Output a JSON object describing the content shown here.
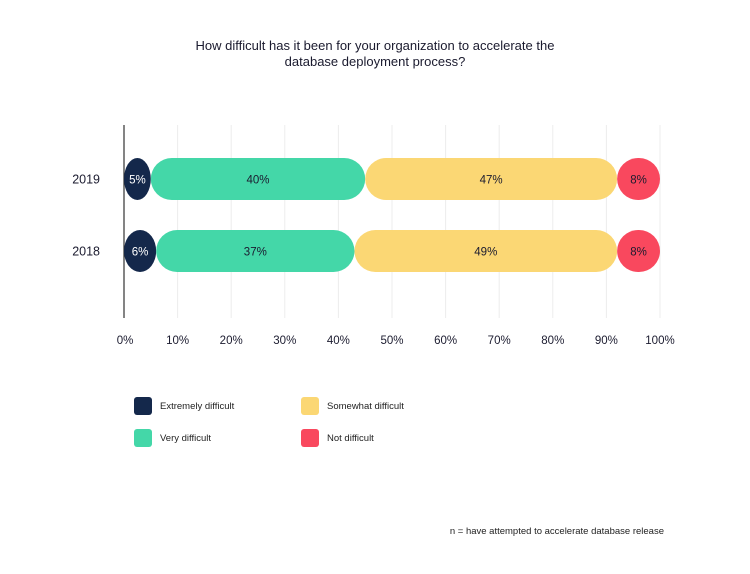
{
  "chart_data": {
    "type": "bar",
    "orientation": "horizontal",
    "stacked": true,
    "title_lines": [
      "How difficult has it been for your organization to accelerate the",
      "database deployment process?"
    ],
    "categories": [
      "2019",
      "2018"
    ],
    "series": [
      {
        "name": "Extremely difficult",
        "values": [
          5,
          6
        ],
        "labels": [
          "5%",
          "6%"
        ],
        "color": "#14284b",
        "label_color": "#ffffff"
      },
      {
        "name": "Very difficult",
        "values": [
          40,
          37
        ],
        "labels": [
          "40%",
          "37%"
        ],
        "color": "#44d7a8",
        "label_color": "#1b1b2f"
      },
      {
        "name": "Somewhat difficult",
        "values": [
          47,
          49
        ],
        "labels": [
          "47%",
          "49%"
        ],
        "color": "#fbd774",
        "label_color": "#1b1b2f"
      },
      {
        "name": "Not difficult",
        "values": [
          8,
          8
        ],
        "labels": [
          "8%",
          "8%"
        ],
        "color": "#f9485e",
        "label_color": "#1b1b2f"
      }
    ],
    "x_ticks": [
      "0%",
      "10%",
      "20%",
      "30%",
      "40%",
      "50%",
      "60%",
      "70%",
      "80%",
      "90%",
      "100%"
    ],
    "xlim": [
      0,
      100
    ],
    "grid": true,
    "legend": {
      "position": "bottom",
      "items": [
        "Extremely difficult",
        "Somewhat difficult",
        "Very difficult",
        "Not difficult"
      ]
    },
    "footnote": "n =  have attempted to accelerate database release"
  }
}
